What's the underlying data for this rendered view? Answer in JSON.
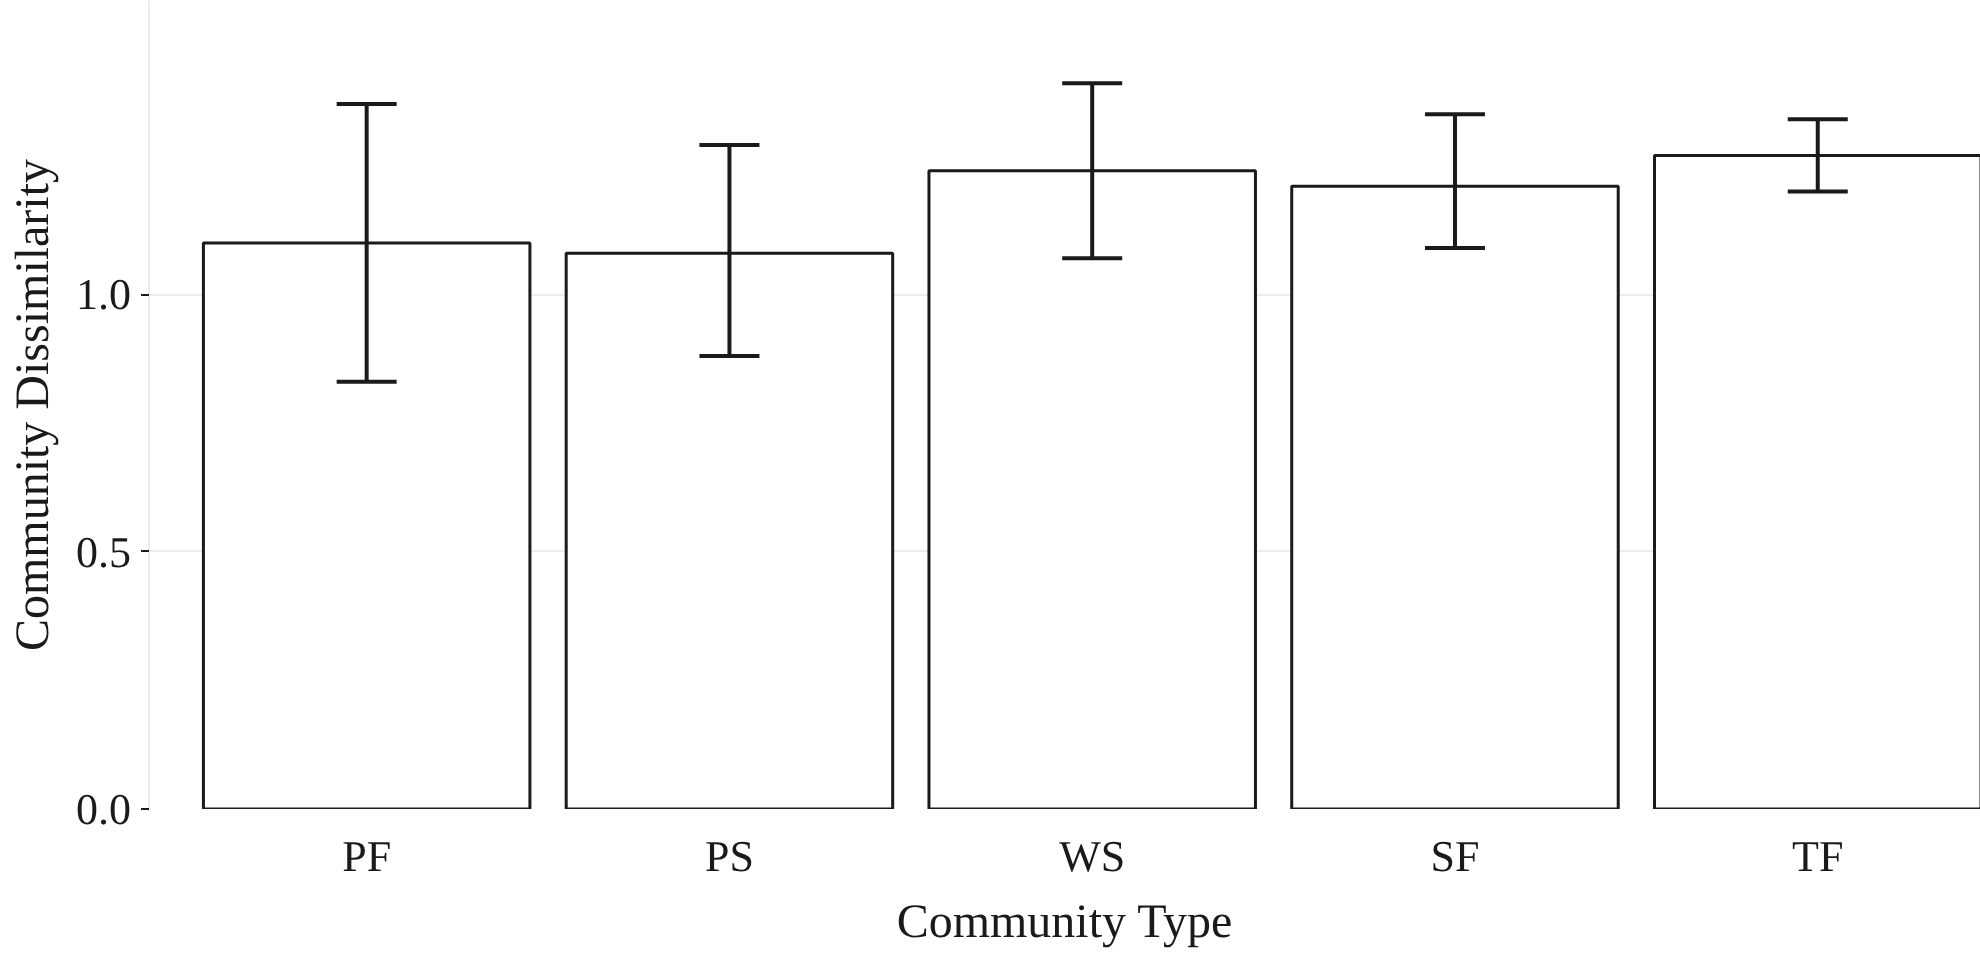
{
  "chart_data": {
    "type": "bar",
    "xlabel": "Community Type",
    "ylabel": "Community Dissimilarity",
    "categories": [
      "PF",
      "PS",
      "WS",
      "SF",
      "TF"
    ],
    "values": [
      1.1,
      1.08,
      1.24,
      1.21,
      1.27
    ],
    "errors": [
      [
        0.83,
        1.37
      ],
      [
        0.88,
        1.29
      ],
      [
        1.07,
        1.41
      ],
      [
        1.09,
        1.35
      ],
      [
        1.2,
        1.34
      ]
    ],
    "color": "#ffffff",
    "ylim": [
      0,
      1.57
    ],
    "yticks": [
      {
        "value": 0,
        "label": "0.0"
      },
      {
        "value": 0.5,
        "label": "0.5"
      },
      {
        "value": 1,
        "label": "1.0"
      }
    ],
    "grid": "y"
  }
}
